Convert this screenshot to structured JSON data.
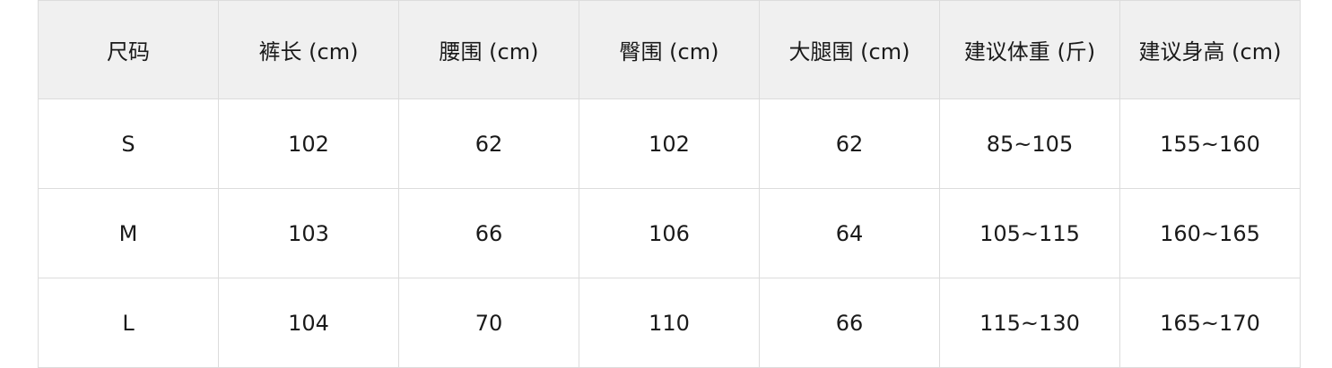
{
  "table": {
    "headers": [
      "尺码",
      "裤长 (cm)",
      "腰围 (cm)",
      "臀围 (cm)",
      "大腿围 (cm)",
      "建议体重 (斤)",
      "建议身高 (cm)"
    ],
    "rows": [
      [
        "S",
        "102",
        "62",
        "102",
        "62",
        "85~105",
        "155~160"
      ],
      [
        "M",
        "103",
        "66",
        "106",
        "64",
        "105~115",
        "160~165"
      ],
      [
        "L",
        "104",
        "70",
        "110",
        "66",
        "115~130",
        "165~170"
      ]
    ]
  },
  "colors": {
    "header_bg": "#f0f0f0",
    "border": "#dcdcdc",
    "text": "#1a1a1a"
  }
}
